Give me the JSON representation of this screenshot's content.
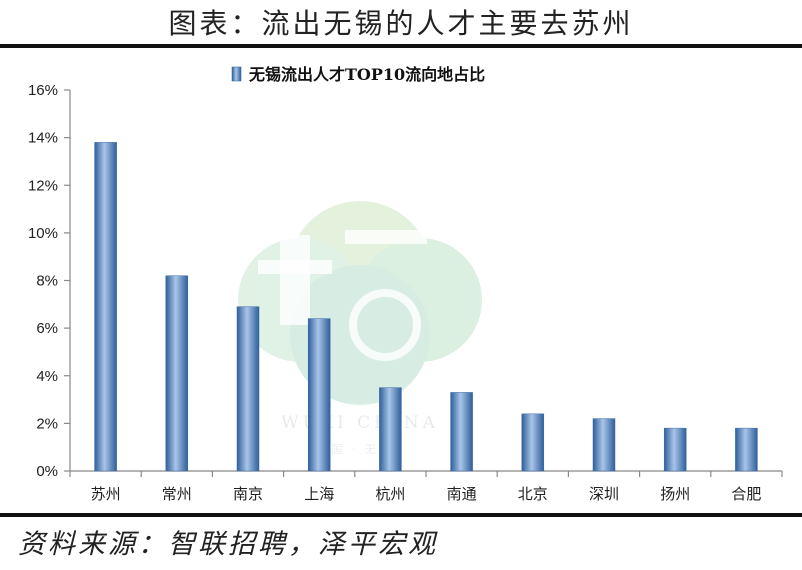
{
  "page": {
    "title": "图表：流出无锡的人才主要去苏州",
    "source": "资料来源：智联招聘，泽平宏观",
    "watermark_text": "WUXI CHINA",
    "watermark_subtext": "中国 · 无锡"
  },
  "chart_data": {
    "type": "bar",
    "title": "无锡流出人才TOP10流向地占比",
    "legend": "无锡流出人才TOP10流向地占比",
    "legend_position": "top",
    "categories": [
      "苏州",
      "常州",
      "南京",
      "上海",
      "杭州",
      "南通",
      "北京",
      "深圳",
      "扬州",
      "合肥"
    ],
    "values": [
      13.8,
      8.2,
      6.9,
      6.4,
      3.5,
      3.3,
      2.4,
      2.2,
      1.8,
      1.8
    ],
    "unit": "%",
    "ylim": [
      0,
      16
    ],
    "yticks": [
      "0%",
      "2%",
      "4%",
      "6%",
      "8%",
      "10%",
      "12%",
      "14%",
      "16%"
    ],
    "grid": false,
    "bar_color": "#4f81bd"
  }
}
